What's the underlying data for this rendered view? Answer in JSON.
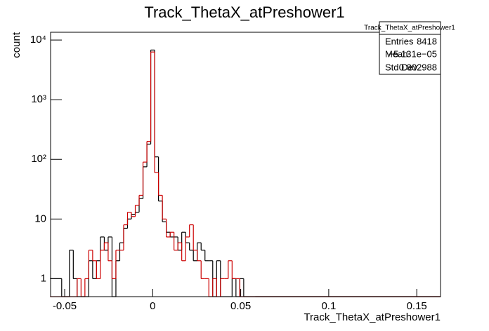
{
  "chart_data": {
    "type": "histogram",
    "title": "Track_ThetaX_atPreshower1",
    "x_label": "Track_ThetaX_atPreshower1",
    "y_label": "count",
    "log_y": true,
    "xlim": [
      -0.058,
      0.1635
    ],
    "ylim": [
      0.5,
      13500
    ],
    "xticks": [
      -0.05,
      0,
      0.05,
      0.1,
      0.15
    ],
    "yticks": [
      1,
      10,
      {
        "value": 100,
        "label": "10²"
      },
      {
        "value": 1000,
        "label": "10³"
      },
      {
        "value": 10000,
        "label": "10⁴"
      }
    ],
    "bins": [
      -0.0583,
      -0.0561,
      -0.0539,
      -0.0517,
      -0.0495,
      -0.0473,
      -0.0451,
      -0.0429,
      -0.0407,
      -0.0385,
      -0.0363,
      -0.0341,
      -0.0319,
      -0.0297,
      -0.0275,
      -0.0253,
      -0.0231,
      -0.0209,
      -0.0187,
      -0.0165,
      -0.0143,
      -0.0121,
      -0.0099,
      -0.0077,
      -0.0055,
      -0.0033,
      -0.0011,
      0.0011,
      0.0033,
      0.0055,
      0.0077,
      0.0099,
      0.0121,
      0.0143,
      0.0165,
      0.0187,
      0.0209,
      0.0231,
      0.0253,
      0.0275,
      0.0297,
      0.0319,
      0.0341,
      0.0363,
      0.0385,
      0.0407,
      0.0429,
      0.0451,
      0.0473,
      0.0495,
      0.0517,
      0.0539,
      0.0561,
      0.0583,
      0.1635
    ],
    "series": [
      {
        "color": "#000000",
        "values": [
          1,
          1,
          1,
          0,
          0,
          3,
          1,
          0,
          0,
          0,
          2,
          1,
          2,
          5,
          3,
          5,
          0,
          2,
          4,
          7,
          10,
          12,
          13,
          22,
          75,
          180,
          6800,
          110,
          20,
          9,
          6,
          5,
          5,
          3,
          6,
          4,
          3,
          2,
          4,
          3,
          2,
          2,
          0,
          2,
          0,
          0,
          0,
          1,
          0,
          1,
          0,
          0,
          0,
          0
        ]
      },
      {
        "color": "#cc0000",
        "values": [
          0,
          0,
          0,
          0,
          0,
          0,
          0,
          1,
          0,
          1,
          3,
          2,
          1,
          3,
          4,
          2,
          1,
          3,
          3,
          8,
          13,
          11,
          17,
          25,
          90,
          200,
          6300,
          60,
          25,
          10,
          5,
          6,
          3,
          4,
          2,
          5,
          8,
          3,
          2,
          1,
          1,
          0,
          1,
          0,
          1,
          1,
          2,
          1,
          1,
          0,
          0,
          0,
          0,
          0
        ]
      }
    ],
    "stats": {
      "title": "Track_ThetaX_atPreshower1",
      "rows": [
        [
          "Entries",
          "8418"
        ],
        [
          "Mean",
          "−5.131e−05"
        ],
        [
          "Std Dev",
          "0.002988"
        ]
      ]
    }
  }
}
